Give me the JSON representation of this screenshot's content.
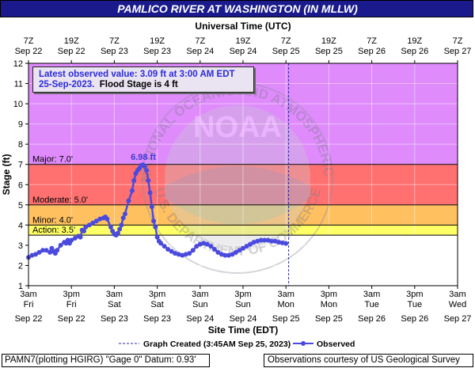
{
  "title": "PAMLICO RIVER AT WASHINGTON (IN MLLW)",
  "top_axis_title": "Universal Time (UTC)",
  "bottom_axis_title": "Site Time (EDT)",
  "y_axis_title": "Stage (ft)",
  "info_box": {
    "line1": "Latest observed value: 3.09 ft at 3:00 AM EDT",
    "line2_date": "25-Sep-2023.",
    "line2_flood": "Flood Stage is 4 ft"
  },
  "legend": {
    "graph_created": "Graph Created (3:45AM Sep 25, 2023)",
    "observed": "Observed"
  },
  "footer_left": "PAMN7(plotting HGIRG) \"Gage 0\" Datum: 0.93'",
  "footer_right": "Observations courtesy of US Geological Survey",
  "watermark": {
    "center_text": "NOAA",
    "ring_text": "NATIONAL OCEANIC AND ATMOSPHERIC ADMINISTRATION",
    "bottom_text": "U.S. DEPARTMENT OF COMMERCE"
  },
  "colors": {
    "major": "#ff7070",
    "moderate": "#ffc060",
    "minor": "#ffff66",
    "action": "#ffffff",
    "above_major": "#df8bfc",
    "observed": "#4a4adf",
    "title_bar": "#1a1a8c"
  },
  "chart_data": {
    "type": "line",
    "title": "PAMLICO RIVER AT WASHINGTON (IN MLLW)",
    "xlabel": "Site Time (EDT)",
    "ylabel": "Stage (ft)",
    "ylim": [
      1,
      12
    ],
    "y_ticks": [
      1,
      2,
      3,
      4,
      5,
      6,
      7,
      8,
      9,
      10,
      11,
      12
    ],
    "x_unit": "hours since 3am Fri Sep 22 EDT",
    "xlim": [
      0,
      120
    ],
    "x_ticks_bottom": [
      {
        "x": 0,
        "time": "3am",
        "day": "Fri",
        "date": "Sep 22"
      },
      {
        "x": 12,
        "time": "3pm",
        "day": "Fri",
        "date": "Sep 22"
      },
      {
        "x": 24,
        "time": "3am",
        "day": "Sat",
        "date": "Sep 23"
      },
      {
        "x": 36,
        "time": "3pm",
        "day": "Sat",
        "date": "Sep 23"
      },
      {
        "x": 48,
        "time": "3am",
        "day": "Sun",
        "date": "Sep 24"
      },
      {
        "x": 60,
        "time": "3pm",
        "day": "Sun",
        "date": "Sep 24"
      },
      {
        "x": 72,
        "time": "3am",
        "day": "Mon",
        "date": "Sep 25"
      },
      {
        "x": 84,
        "time": "3pm",
        "day": "Mon",
        "date": "Sep 25"
      },
      {
        "x": 96,
        "time": "3am",
        "day": "Tue",
        "date": "Sep 26"
      },
      {
        "x": 108,
        "time": "3pm",
        "day": "Tue",
        "date": "Sep 26"
      },
      {
        "x": 120,
        "time": "3am",
        "day": "Wed",
        "date": "Sep 27"
      }
    ],
    "x_ticks_top": [
      {
        "x": 0,
        "time": "7Z",
        "date": "Sep 22"
      },
      {
        "x": 12,
        "time": "19Z",
        "date": "Sep 22"
      },
      {
        "x": 24,
        "time": "7Z",
        "date": "Sep 23"
      },
      {
        "x": 36,
        "time": "19Z",
        "date": "Sep 23"
      },
      {
        "x": 48,
        "time": "7Z",
        "date": "Sep 24"
      },
      {
        "x": 60,
        "time": "19Z",
        "date": "Sep 24"
      },
      {
        "x": 72,
        "time": "7Z",
        "date": "Sep 25"
      },
      {
        "x": 84,
        "time": "19Z",
        "date": "Sep 25"
      },
      {
        "x": 96,
        "time": "7Z",
        "date": "Sep 26"
      },
      {
        "x": 108,
        "time": "19Z",
        "date": "Sep 26"
      },
      {
        "x": 120,
        "time": "7Z",
        "date": "Sep 27"
      }
    ],
    "flood_categories": [
      {
        "name": "Action",
        "label": "Action: 3.5'",
        "stage": 3.5
      },
      {
        "name": "Minor",
        "label": "Minor: 4.0'",
        "stage": 4.0
      },
      {
        "name": "Moderate",
        "label": "Moderate: 5.0'",
        "stage": 5.0
      },
      {
        "name": "Major",
        "label": "Major: 7.0'",
        "stage": 7.0
      }
    ],
    "peak": {
      "x": 32.1,
      "y": 6.98,
      "label": "6.98 ft"
    },
    "graph_created_x": 72.75,
    "series": [
      {
        "name": "Observed",
        "x": [
          0,
          1,
          2,
          3,
          4,
          5,
          6,
          6.5,
          7,
          7.5,
          8,
          9,
          10,
          10.5,
          11,
          11.5,
          12,
          13,
          14,
          14.5,
          15,
          15.5,
          16,
          17,
          18,
          19,
          20,
          21,
          21.5,
          22,
          23,
          23.5,
          24,
          24.5,
          25,
          25.5,
          26,
          26.5,
          27,
          28,
          29,
          29.5,
          30,
          30.5,
          31,
          31.5,
          32,
          32.5,
          33,
          33.5,
          34,
          34.5,
          35,
          35.5,
          36,
          36.5,
          37,
          38,
          39,
          40,
          41,
          42,
          43,
          44,
          45,
          46,
          47,
          48,
          49,
          50,
          51,
          52,
          53,
          54,
          55,
          56,
          57,
          58,
          59,
          60,
          61,
          62,
          63,
          64,
          65,
          66,
          67,
          68,
          69,
          70,
          71,
          72
        ],
        "y": [
          2.4,
          2.5,
          2.55,
          2.65,
          2.75,
          2.75,
          2.65,
          2.85,
          2.7,
          2.6,
          2.75,
          3.0,
          3.15,
          3.1,
          3.25,
          3.1,
          3.25,
          3.35,
          3.45,
          3.4,
          3.75,
          3.7,
          3.9,
          4.0,
          4.1,
          4.2,
          4.3,
          4.35,
          4.4,
          4.3,
          3.9,
          3.7,
          3.55,
          3.5,
          3.6,
          3.8,
          4.0,
          4.35,
          4.55,
          5.2,
          5.7,
          6.2,
          6.55,
          6.7,
          6.8,
          6.95,
          6.98,
          6.9,
          6.7,
          6.2,
          5.6,
          4.9,
          4.2,
          3.9,
          3.4,
          3.2,
          3.1,
          2.95,
          2.8,
          2.7,
          2.6,
          2.55,
          2.5,
          2.55,
          2.6,
          2.75,
          2.95,
          3.05,
          3.1,
          3.05,
          2.95,
          2.8,
          2.65,
          2.55,
          2.5,
          2.5,
          2.55,
          2.65,
          2.75,
          2.85,
          2.95,
          3.05,
          3.15,
          3.2,
          3.25,
          3.25,
          3.25,
          3.2,
          3.2,
          3.15,
          3.12,
          3.09
        ]
      }
    ]
  }
}
